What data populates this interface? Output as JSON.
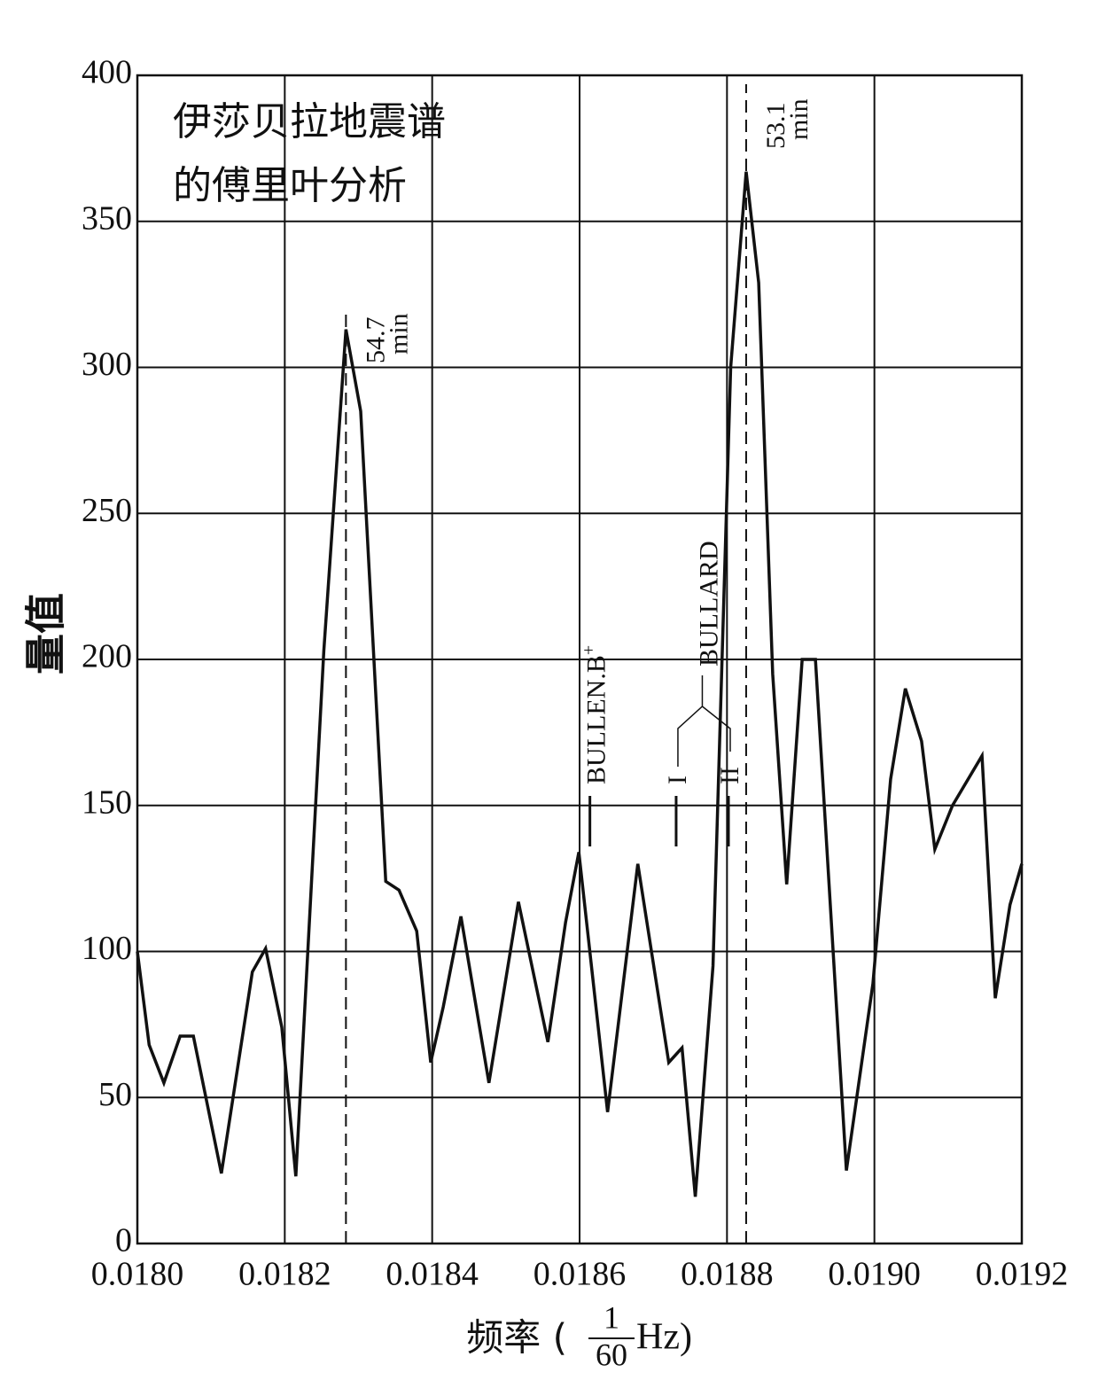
{
  "chart_data": {
    "type": "line",
    "title": [
      "伊莎贝拉地震谱",
      "的傅里叶分析"
    ],
    "ylabel": "量值",
    "xlabel": {
      "prefix": "频率 (",
      "numerator": "1",
      "denominator": "60",
      "suffix": "Hz)"
    },
    "x": [
      0.018,
      0.018016,
      0.018036,
      0.018058,
      0.018076,
      0.018114,
      0.018156,
      0.018174,
      0.018196,
      0.018215,
      0.018253,
      0.018283,
      0.018303,
      0.018337,
      0.018355,
      0.018379,
      0.018398,
      0.018415,
      0.018439,
      0.018477,
      0.018517,
      0.018557,
      0.018581,
      0.018599,
      0.018638,
      0.018679,
      0.018721,
      0.018739,
      0.018757,
      0.018781,
      0.018805,
      0.018826,
      0.018843,
      0.018862,
      0.018881,
      0.018902,
      0.01892,
      0.018962,
      0.018998,
      0.019022,
      0.019042,
      0.019064,
      0.019082,
      0.019106,
      0.019146,
      0.019164,
      0.019184,
      0.0192
    ],
    "values": [
      100,
      68,
      55,
      71,
      71,
      24,
      93,
      101,
      74,
      23,
      203,
      313,
      285,
      124,
      121,
      107,
      62,
      81,
      112,
      55,
      117,
      69,
      110,
      134,
      45,
      130,
      62,
      67,
      16,
      95,
      300,
      367,
      329,
      195,
      123,
      200,
      200,
      25,
      89,
      159,
      190,
      172,
      135,
      150,
      167,
      84,
      116,
      130
    ],
    "color": "#111111",
    "xlim": [
      0.018,
      0.0192
    ],
    "ylim": [
      0,
      400
    ],
    "xticks": [
      {
        "value": 0.018,
        "label": "0.0180"
      },
      0.0182,
      0.0184,
      0.0186,
      0.0188,
      {
        "value": 0.019,
        "label": "0.0190"
      },
      0.0192
    ],
    "yticks": [
      0,
      50,
      100,
      150,
      200,
      250,
      300,
      350,
      400
    ],
    "grid": true,
    "peaks": [
      {
        "value": "54.7",
        "unit": "min",
        "x": 0.018283
      },
      {
        "value": "53.1",
        "unit": "min",
        "x": 0.018826
      }
    ],
    "markers": [
      {
        "text": "BULLEN.B",
        "sup": "+",
        "x": 0.018614
      },
      {
        "text": "I",
        "x": 0.018731
      },
      {
        "text": "II",
        "x": 0.018802
      }
    ],
    "bracket_label": "BULLARD"
  }
}
